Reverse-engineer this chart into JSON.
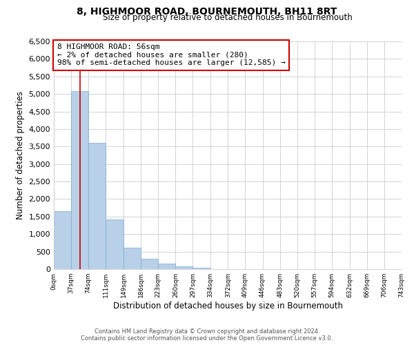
{
  "title": "8, HIGHMOOR ROAD, BOURNEMOUTH, BH11 8RT",
  "subtitle": "Size of property relative to detached houses in Bournemouth",
  "xlabel": "Distribution of detached houses by size in Bournemouth",
  "ylabel": "Number of detached properties",
  "bar_edges": [
    0,
    37,
    74,
    111,
    149,
    186,
    223,
    260,
    297,
    334,
    372,
    409,
    446,
    483,
    520,
    557,
    594,
    632,
    669,
    706,
    743
  ],
  "bar_heights": [
    1650,
    5080,
    3600,
    1420,
    610,
    300,
    150,
    80,
    30,
    0,
    0,
    0,
    0,
    0,
    0,
    0,
    0,
    0,
    0,
    0
  ],
  "bar_color": "#b8d0e8",
  "bar_edgecolor": "#7aadd4",
  "property_line_x": 56,
  "property_line_color": "#cc0000",
  "annotation_text": "8 HIGHMOOR ROAD: 56sqm\n← 2% of detached houses are smaller (280)\n98% of semi-detached houses are larger (12,585) →",
  "annotation_box_edgecolor": "#cc0000",
  "annotation_box_facecolor": "#ffffff",
  "ylim": [
    0,
    6500
  ],
  "yticks": [
    0,
    500,
    1000,
    1500,
    2000,
    2500,
    3000,
    3500,
    4000,
    4500,
    5000,
    5500,
    6000,
    6500
  ],
  "tick_labels": [
    "0sqm",
    "37sqm",
    "74sqm",
    "111sqm",
    "149sqm",
    "186sqm",
    "223sqm",
    "260sqm",
    "297sqm",
    "334sqm",
    "372sqm",
    "409sqm",
    "446sqm",
    "483sqm",
    "520sqm",
    "557sqm",
    "594sqm",
    "632sqm",
    "669sqm",
    "706sqm",
    "743sqm"
  ],
  "footer_line1": "Contains HM Land Registry data © Crown copyright and database right 2024.",
  "footer_line2": "Contains public sector information licensed under the Open Government Licence v3.0.",
  "grid_color": "#cccccc",
  "background_color": "#ffffff"
}
